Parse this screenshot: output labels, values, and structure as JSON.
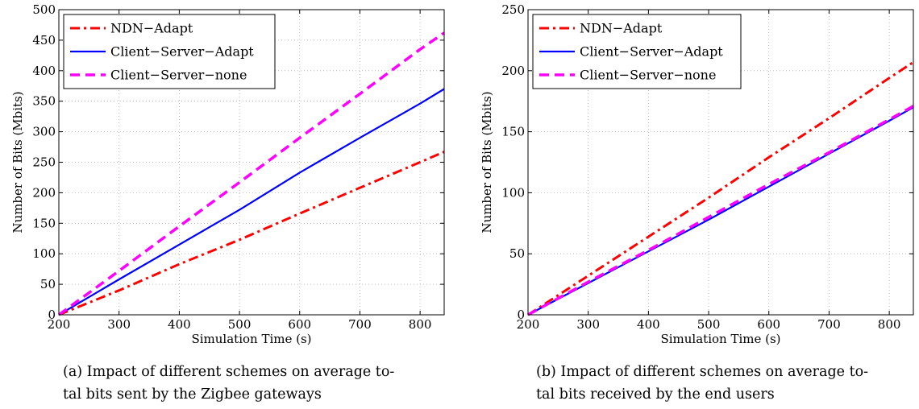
{
  "chart_data": [
    {
      "type": "line",
      "panel": "(a)",
      "caption_line1": "(a)  Impact of different schemes on average to-",
      "caption_line2": "tal bits sent by the Zigbee gateways",
      "xlabel": "Simulation Time (s)",
      "ylabel": "Number of Bits (Mbits)",
      "xlim": [
        200,
        840
      ],
      "ylim": [
        0,
        500
      ],
      "xticks": [
        200,
        300,
        400,
        500,
        600,
        700,
        800
      ],
      "yticks": [
        0,
        50,
        100,
        150,
        200,
        250,
        300,
        350,
        400,
        450,
        500
      ],
      "grid": true,
      "legend_position": "top-left",
      "series": [
        {
          "name": "NDN−Adapt",
          "color": "#ff0000",
          "dash": "dashdot",
          "x": [
            200,
            300,
            400,
            500,
            600,
            700,
            800,
            840
          ],
          "y": [
            0,
            40,
            83,
            123,
            166,
            208,
            250,
            267
          ]
        },
        {
          "name": "Client−Server−Adapt",
          "color": "#0000ff",
          "dash": "solid",
          "x": [
            200,
            300,
            400,
            500,
            600,
            700,
            800,
            840
          ],
          "y": [
            0,
            58,
            115,
            172,
            233,
            290,
            346,
            370
          ]
        },
        {
          "name": "Client−Server−none",
          "color": "#ff00ff",
          "dash": "dashed",
          "x": [
            200,
            300,
            400,
            500,
            600,
            700,
            800,
            840
          ],
          "y": [
            0,
            72,
            145,
            217,
            290,
            362,
            435,
            462
          ]
        }
      ]
    },
    {
      "type": "line",
      "panel": "(b)",
      "caption_line1": "(b)  Impact of different schemes on average to-",
      "caption_line2": "tal bits received by the end users",
      "xlabel": "Simulation Time (s)",
      "ylabel": "Number of Bits (Mbits)",
      "xlim": [
        200,
        840
      ],
      "ylim": [
        0,
        250
      ],
      "xticks": [
        200,
        300,
        400,
        500,
        600,
        700,
        800
      ],
      "yticks": [
        0,
        50,
        100,
        150,
        200,
        250
      ],
      "grid": true,
      "legend_position": "top-left",
      "series": [
        {
          "name": "NDN−Adapt",
          "color": "#ff0000",
          "dash": "dashdot",
          "x": [
            200,
            300,
            400,
            500,
            600,
            700,
            800,
            840
          ],
          "y": [
            0,
            32,
            64,
            96,
            129,
            161,
            194,
            207
          ]
        },
        {
          "name": "Client−Server−Adapt",
          "color": "#0000ff",
          "dash": "solid",
          "x": [
            200,
            300,
            400,
            500,
            600,
            700,
            800,
            840
          ],
          "y": [
            0,
            26,
            52,
            78,
            105,
            132,
            159,
            170
          ]
        },
        {
          "name": "Client−Server−none",
          "color": "#ff00ff",
          "dash": "dashed",
          "x": [
            200,
            300,
            400,
            500,
            600,
            700,
            800,
            840
          ],
          "y": [
            0,
            27,
            53,
            80,
            107,
            133,
            160,
            171
          ]
        }
      ]
    }
  ]
}
